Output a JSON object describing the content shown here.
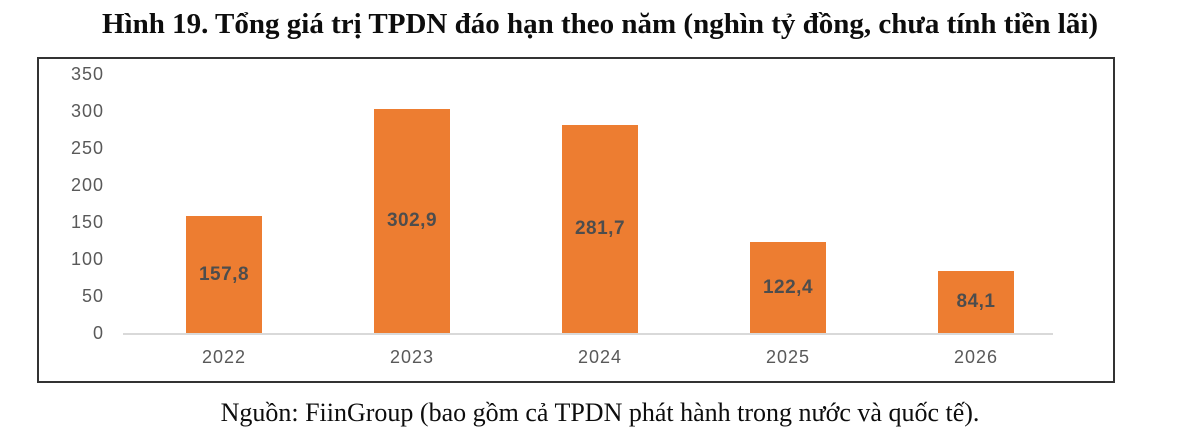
{
  "figure": {
    "title": "Hình 19. Tổng giá trị TPDN đáo hạn theo năm (nghìn tỷ đồng, chưa tính tiền lãi)",
    "caption": "Nguồn: FiinGroup (bao gồm cả TPDN phát hành trong nước và quốc tế)."
  },
  "chart_data": {
    "type": "bar",
    "title": "Hình 19. Tổng giá trị TPDN đáo hạn theo năm (nghìn tỷ đồng, chưa tính tiền lãi)",
    "categories": [
      "2022",
      "2023",
      "2024",
      "2025",
      "2026"
    ],
    "values": [
      157.8,
      302.9,
      281.7,
      122.4,
      84.1
    ],
    "value_labels": [
      "157,8",
      "302,9",
      "281,7",
      "122,4",
      "84,1"
    ],
    "xlabel": "",
    "ylabel": "",
    "ylim": [
      0,
      350
    ],
    "yticks": [
      0,
      50,
      100,
      150,
      200,
      250,
      300,
      350
    ],
    "grid": false,
    "legend_position": "none",
    "value_label_position": "center",
    "colors": {
      "bar": "#ED7D31",
      "value_label": "#4d4d4d",
      "axis_text": "#595959",
      "frame_border": "#333333",
      "baseline": "#d9d9d9"
    }
  }
}
